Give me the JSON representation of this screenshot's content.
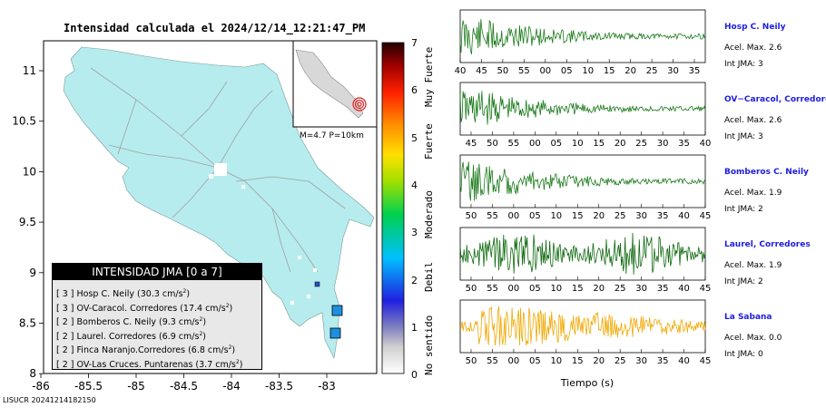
{
  "title": "Intensidad calculada el 2024/12/14_12:21:47_PM",
  "footer_id": "LISUCR 20241214182150",
  "map": {
    "x_ticks": [
      "-86",
      "-85.5",
      "-85",
      "-84.5",
      "-84",
      "-83.5",
      "-83"
    ],
    "y_ticks": [
      "11",
      "10.5",
      "10",
      "9.5",
      "9",
      "8.5",
      "8"
    ],
    "inset_label": "M=4.7 P=10km",
    "land_color": "#b6ecee",
    "station_color": "#1e8fe0"
  },
  "legend": {
    "header": "INTENSIDAD JMA [0 a 7]",
    "rows": [
      {
        "jma": "[ 3 ]",
        "name": "Hosp C. Neily",
        "accel": "(30.3 cm/s",
        "sup": "2",
        "close": ")"
      },
      {
        "jma": "[ 3 ]",
        "name": "OV-Caracol. Corredores",
        "accel": "(17.4 cm/s",
        "sup": "2",
        "close": ")"
      },
      {
        "jma": "[ 2 ]",
        "name": "Bomberos C. Neily",
        "accel": "(9.3 cm/s",
        "sup": "2",
        "close": ")"
      },
      {
        "jma": "[ 2 ]",
        "name": "Laurel. Corredores",
        "accel": "(6.9 cm/s",
        "sup": "2",
        "close": ")"
      },
      {
        "jma": "[ 2 ]",
        "name": "Finca Naranjo.Corredores",
        "accel": "(6.8 cm/s",
        "sup": "2",
        "close": ")"
      },
      {
        "jma": "[ 2 ]",
        "name": "OV-Las Cruces. Puntarenas",
        "accel": "(3.7 cm/s",
        "sup": "2",
        "close": ")"
      }
    ]
  },
  "colorbar": {
    "ticks": [
      "7",
      "6",
      "5",
      "4",
      "3",
      "2",
      "1",
      "0"
    ],
    "words": [
      "Muy Fuerte",
      "Fuerte",
      "Moderado",
      "Debil",
      "No sentido"
    ]
  },
  "seismograms": [
    {
      "name": "Hosp C. Neily",
      "accel": "Acel. Max. 2.6",
      "int": "Int JMA: 3",
      "ticks": [
        "40",
        "45",
        "50",
        "55",
        "00",
        "05",
        "10",
        "15",
        "20",
        "25",
        "30",
        "35"
      ],
      "color": "#1a7a1a"
    },
    {
      "name": "OV−Caracol, Corredores",
      "accel": "Acel. Max. 2.6",
      "int": "Int JMA: 3",
      "ticks": [
        "45",
        "50",
        "55",
        "00",
        "05",
        "10",
        "15",
        "20",
        "25",
        "30",
        "35",
        "40"
      ],
      "color": "#1a7a1a"
    },
    {
      "name": "Bomberos C. Neily",
      "accel": "Acel. Max. 1.9",
      "int": "Int JMA: 2",
      "ticks": [
        "50",
        "55",
        "00",
        "05",
        "10",
        "15",
        "20",
        "25",
        "30",
        "35",
        "40",
        "45"
      ],
      "color": "#1a7a1a"
    },
    {
      "name": "Laurel, Corredores",
      "accel": "Acel. Max. 1.9",
      "int": "Int JMA: 2",
      "ticks": [
        "50",
        "55",
        "00",
        "05",
        "10",
        "15",
        "20",
        "25",
        "30",
        "35",
        "40",
        "45"
      ],
      "color": "#0f6a0f"
    },
    {
      "name": "La Sabana",
      "accel": "Acel. Max. 0.0",
      "int": "Int JMA: 0",
      "ticks": [
        "50",
        "55",
        "00",
        "05",
        "10",
        "15",
        "20",
        "25",
        "30",
        "35",
        "40",
        "45"
      ],
      "color": "#f0a800"
    }
  ],
  "xlabel": "Tiempo (s)"
}
